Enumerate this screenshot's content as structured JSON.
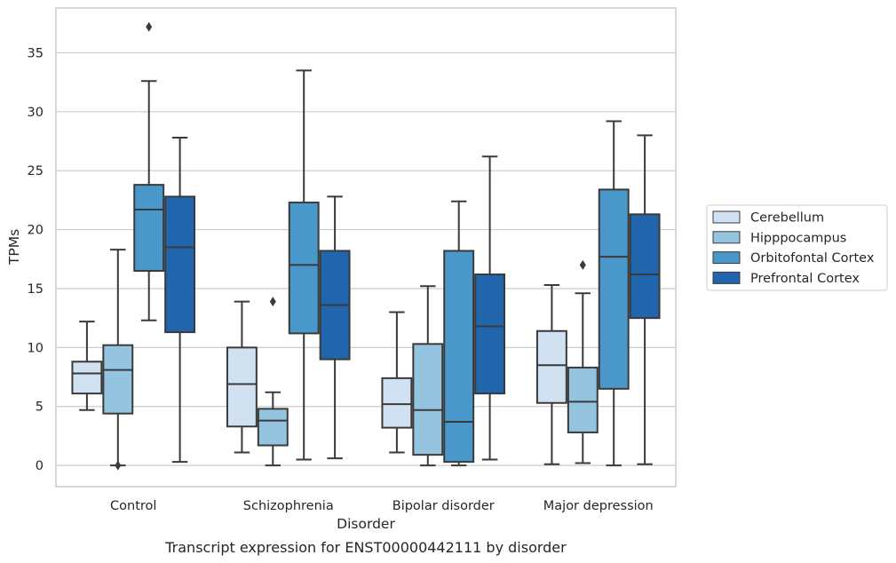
{
  "chart_data": {
    "type": "box",
    "xlabel": "Disorder",
    "ylabel": "TPMs",
    "caption": "Transcript expression for ENST00000442111 by disorder",
    "ylim": [
      -1.8,
      38.8
    ],
    "yticks": [
      0,
      5,
      10,
      15,
      20,
      25,
      30,
      35
    ],
    "grid": true,
    "legend_position": "right",
    "categories": [
      "Control",
      "Schizophrenia",
      "Bipolar disorder",
      "Major depression"
    ],
    "series": [
      {
        "name": "Cerebellum",
        "color": "#d0e1f2",
        "boxes": [
          {
            "whisker_low": 4.7,
            "q1": 6.1,
            "median": 7.8,
            "q3": 8.8,
            "whisker_high": 12.2,
            "outliers": []
          },
          {
            "whisker_low": 1.1,
            "q1": 3.3,
            "median": 6.9,
            "q3": 10.0,
            "whisker_high": 13.9,
            "outliers": []
          },
          {
            "whisker_low": 1.1,
            "q1": 3.2,
            "median": 5.2,
            "q3": 7.4,
            "whisker_high": 13.0,
            "outliers": []
          },
          {
            "whisker_low": 0.1,
            "q1": 5.3,
            "median": 8.5,
            "q3": 11.4,
            "whisker_high": 15.3,
            "outliers": []
          }
        ]
      },
      {
        "name": "Hipppocampus",
        "color": "#94c4df",
        "boxes": [
          {
            "whisker_low": 0.0,
            "q1": 4.4,
            "median": 8.1,
            "q3": 10.2,
            "whisker_high": 18.3,
            "outliers": [
              0.0
            ]
          },
          {
            "whisker_low": 0.0,
            "q1": 1.7,
            "median": 3.8,
            "q3": 4.8,
            "whisker_high": 6.2,
            "outliers": [
              13.9
            ]
          },
          {
            "whisker_low": 0.0,
            "q1": 0.9,
            "median": 4.7,
            "q3": 10.3,
            "whisker_high": 15.2,
            "outliers": []
          },
          {
            "whisker_low": 0.2,
            "q1": 2.8,
            "median": 5.4,
            "q3": 8.3,
            "whisker_high": 14.6,
            "outliers": [
              17.0
            ]
          }
        ]
      },
      {
        "name": "Orbitofontal Cortex",
        "color": "#4a98c9",
        "boxes": [
          {
            "whisker_low": 12.3,
            "q1": 16.5,
            "median": 21.7,
            "q3": 23.8,
            "whisker_high": 32.6,
            "outliers": [
              37.2
            ]
          },
          {
            "whisker_low": 0.5,
            "q1": 11.2,
            "median": 17.0,
            "q3": 22.3,
            "whisker_high": 33.5,
            "outliers": []
          },
          {
            "whisker_low": 0.0,
            "q1": 0.3,
            "median": 3.7,
            "q3": 18.2,
            "whisker_high": 22.4,
            "outliers": []
          },
          {
            "whisker_low": 0.0,
            "q1": 6.5,
            "median": 17.7,
            "q3": 23.4,
            "whisker_high": 29.2,
            "outliers": []
          }
        ]
      },
      {
        "name": "Prefrontal Cortex",
        "color": "#2166ac",
        "boxes": [
          {
            "whisker_low": 0.3,
            "q1": 11.3,
            "median": 18.5,
            "q3": 22.8,
            "whisker_high": 27.8,
            "outliers": []
          },
          {
            "whisker_low": 0.6,
            "q1": 9.0,
            "median": 13.6,
            "q3": 18.2,
            "whisker_high": 22.8,
            "outliers": []
          },
          {
            "whisker_low": 0.5,
            "q1": 6.1,
            "median": 11.8,
            "q3": 16.2,
            "whisker_high": 26.2,
            "outliers": []
          },
          {
            "whisker_low": 0.1,
            "q1": 12.5,
            "median": 16.2,
            "q3": 21.3,
            "whisker_high": 28.0,
            "outliers": []
          }
        ]
      }
    ]
  }
}
